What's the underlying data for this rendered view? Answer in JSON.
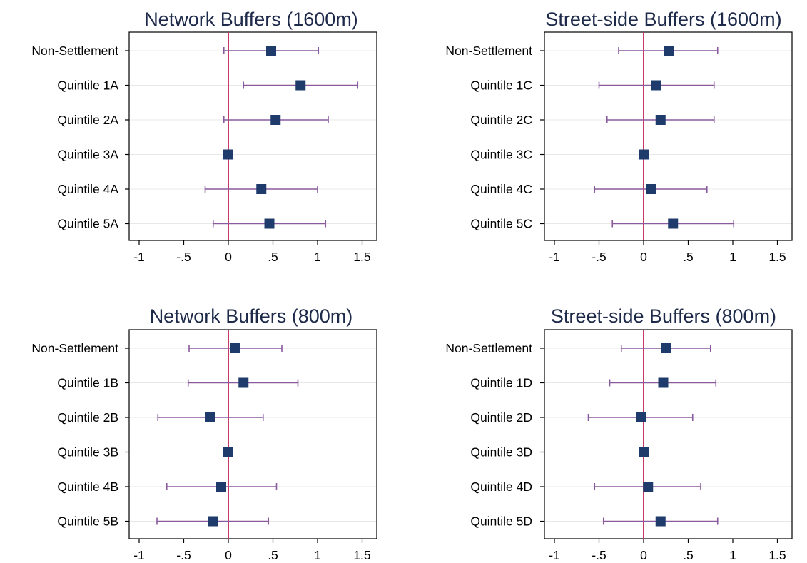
{
  "colors": {
    "marker": "#1f3b6b",
    "ci": "#8a5a9e",
    "zero_line": "#c0245a",
    "grid": "#e8e8e8",
    "axis": "#000000",
    "title": "#1e2a4a"
  },
  "chart_data": [
    {
      "type": "scatter",
      "title": "Network Buffers (1600m)",
      "xlim": [
        -1.15,
        1.6
      ],
      "xticks": [
        -1,
        -0.5,
        0,
        0.5,
        1,
        1.5
      ],
      "xtick_labels": [
        "-1",
        "-.5",
        "0",
        ".5",
        "1",
        "1.5"
      ],
      "reference_line": 0,
      "categories": [
        "Non-Settlement",
        "Quintile 1A",
        "Quintile 2A",
        "Quintile 3A",
        "Quintile 4A",
        "Quintile 5A"
      ],
      "estimates": [
        0.48,
        0.81,
        0.53,
        0.0,
        0.37,
        0.46
      ],
      "ci_low": [
        -0.05,
        0.17,
        -0.05,
        0.0,
        -0.26,
        -0.17
      ],
      "ci_high": [
        1.01,
        1.45,
        1.12,
        0.0,
        1.0,
        1.09
      ]
    },
    {
      "type": "scatter",
      "title": "Street-side Buffers (1600m)",
      "xlim": [
        -1.15,
        1.6
      ],
      "xticks": [
        -1,
        -0.5,
        0,
        0.5,
        1,
        1.5
      ],
      "xtick_labels": [
        "-1",
        "-.5",
        "0",
        ".5",
        "1",
        "1.5"
      ],
      "reference_line": 0,
      "categories": [
        "Non-Settlement",
        "Quintile 1C",
        "Quintile 2C",
        "Quintile 3C",
        "Quintile 4C",
        "Quintile 5C"
      ],
      "estimates": [
        0.28,
        0.14,
        0.19,
        0.0,
        0.08,
        0.33
      ],
      "ci_low": [
        -0.28,
        -0.5,
        -0.41,
        0.0,
        -0.55,
        -0.35
      ],
      "ci_high": [
        0.83,
        0.79,
        0.79,
        0.0,
        0.71,
        1.01
      ]
    },
    {
      "type": "scatter",
      "title": "Network Buffers (800m)",
      "xlim": [
        -1.15,
        1.6
      ],
      "xticks": [
        -1,
        -0.5,
        0,
        0.5,
        1,
        1.5
      ],
      "xtick_labels": [
        "-1",
        "-.5",
        "0",
        ".5",
        "1",
        "1.5"
      ],
      "reference_line": 0,
      "categories": [
        "Non-Settlement",
        "Quintile 1B",
        "Quintile 2B",
        "Quintile 3B",
        "Quintile 4B",
        "Quintile 5B"
      ],
      "estimates": [
        0.08,
        0.17,
        -0.2,
        0.0,
        -0.08,
        -0.17
      ],
      "ci_low": [
        -0.44,
        -0.45,
        -0.79,
        0.0,
        -0.69,
        -0.8
      ],
      "ci_high": [
        0.6,
        0.78,
        0.39,
        0.0,
        0.54,
        0.45
      ]
    },
    {
      "type": "scatter",
      "title": "Street-side Buffers (800m)",
      "xlim": [
        -1.15,
        1.6
      ],
      "xticks": [
        -1,
        -0.5,
        0,
        0.5,
        1,
        1.5
      ],
      "xtick_labels": [
        "-1",
        "-.5",
        "0",
        ".5",
        "1",
        "1.5"
      ],
      "reference_line": 0,
      "categories": [
        "Non-Settlement",
        "Quintile 1D",
        "Quintile 2D",
        "Quintile 3D",
        "Quintile 4D",
        "Quintile 5D"
      ],
      "estimates": [
        0.25,
        0.22,
        -0.03,
        0.0,
        0.05,
        0.19
      ],
      "ci_low": [
        -0.25,
        -0.38,
        -0.62,
        0.0,
        -0.55,
        -0.45
      ],
      "ci_high": [
        0.75,
        0.81,
        0.55,
        0.0,
        0.64,
        0.83
      ]
    }
  ]
}
